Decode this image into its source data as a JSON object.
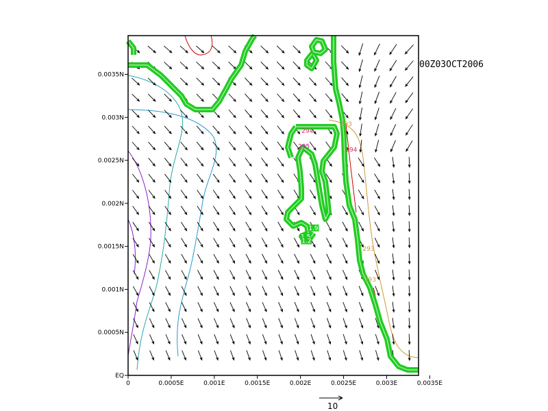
{
  "chart_data": {
    "type": "vector-contour",
    "date_label": "00Z03OCT2006",
    "x_ticks": [
      "0",
      "0.0005E",
      "0.001E",
      "0.0015E",
      "0.002E",
      "0.0025E",
      "0.003E",
      "0.0035E"
    ],
    "y_ticks": [
      "EQ",
      "0.0005N",
      "0.001N",
      "0.0015N",
      "0.002N",
      "0.0025N",
      "0.003N",
      "0.0035N"
    ],
    "x_tick_values": [
      0,
      0.0005,
      0.001,
      0.0015,
      0.002,
      0.0025,
      0.003,
      0.0035
    ],
    "y_tick_values": [
      0,
      0.0005,
      0.001,
      0.0015,
      0.002,
      0.0025,
      0.003,
      0.0035
    ],
    "xlim": [
      0,
      0.00337
    ],
    "ylim": [
      0,
      0.00395
    ],
    "reference_vector": {
      "magnitude": 10,
      "label": "10"
    },
    "contour_labels": [
      {
        "text": "294",
        "color": "#cc3366",
        "x": 0.00208,
        "y": 0.00282
      },
      {
        "text": "295",
        "color": "#cc0088",
        "x": 0.00204,
        "y": 0.00264
      },
      {
        "text": "294",
        "color": "#cc3366",
        "x": 0.00259,
        "y": 0.0026
      },
      {
        "text": "293",
        "color": "#cc9933",
        "x": 0.00253,
        "y": 0.0029
      },
      {
        "text": "293",
        "color": "#cc9933",
        "x": 0.00279,
        "y": 0.00145
      },
      {
        "text": "293",
        "color": "#cc9933",
        "x": 0.00281,
        "y": 0.00109
      },
      {
        "text": "1.9",
        "color": "#ffffff",
        "x": 0.00215,
        "y": 0.00169
      },
      {
        "text": "1.5",
        "color": "#ffffff",
        "x": 0.00206,
        "y": 0.00159
      },
      {
        "text": "1.2",
        "color": "#ffffff",
        "x": 0.00207,
        "y": 0.00154
      }
    ]
  },
  "colors": {
    "frame": "#000000",
    "vectors": "#000000",
    "green_contour": "#22cc22",
    "cyan_contour": "#22aaaa",
    "teal_contour": "#2299cc",
    "purple_contour": "#8822cc",
    "red_contour": "#cc0000",
    "orange_contour": "#cc9933"
  }
}
